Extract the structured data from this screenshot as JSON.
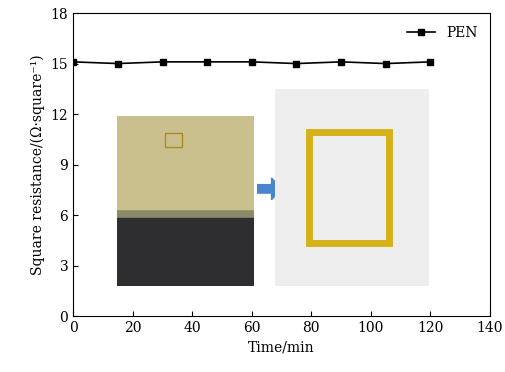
{
  "chart_data": {
    "type": "line",
    "x_label": "Time/min",
    "y_label": "Square resistance/(Ω·square⁻¹)",
    "x": [
      0,
      15,
      30,
      45,
      60,
      75,
      90,
      105,
      120
    ],
    "series": [
      {
        "name": "PEN",
        "color": "#000000",
        "marker": "square",
        "line_style": "solid",
        "values": [
          15.1,
          15.0,
          15.1,
          15.1,
          15.1,
          15.0,
          15.1,
          15.0,
          15.1
        ]
      }
    ],
    "xlim": [
      0,
      140
    ],
    "xticks": [
      0,
      20,
      40,
      60,
      80,
      100,
      120,
      140
    ],
    "ylim": [
      0,
      18
    ],
    "yticks": [
      0,
      3,
      6,
      9,
      12,
      15,
      18
    ],
    "legend": "upper right",
    "grid": false
  }
}
